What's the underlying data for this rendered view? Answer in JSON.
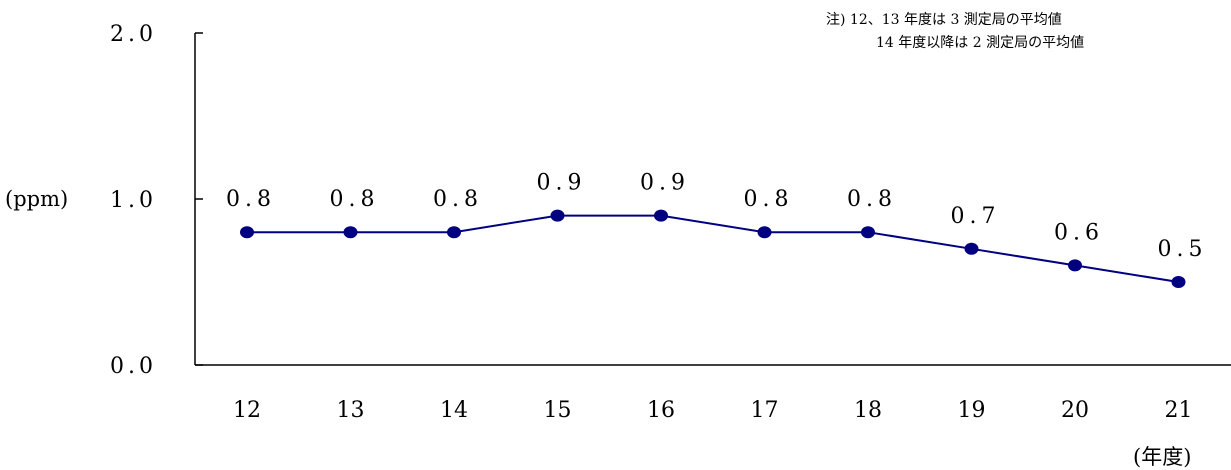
{
  "chart_data": {
    "type": "line",
    "categories": [
      "12",
      "13",
      "14",
      "15",
      "16",
      "17",
      "18",
      "19",
      "20",
      "21"
    ],
    "series": [
      {
        "values": [
          0.8,
          0.8,
          0.8,
          0.9,
          0.9,
          0.8,
          0.8,
          0.7,
          0.6,
          0.5
        ],
        "value_labels": [
          "0.8",
          "0.8",
          "0.8",
          "0.9",
          "0.9",
          "0.8",
          "0.8",
          "0.7",
          "0.6",
          "0.5"
        ],
        "color": "#000080"
      }
    ],
    "ylabel": "(ppm)",
    "xlabel": "(年度)",
    "ylim": [
      0.0,
      2.0
    ],
    "yticks": [
      {
        "value": 2.0,
        "label": "2.0"
      },
      {
        "value": 1.0,
        "label": "1.0"
      },
      {
        "value": 0.0,
        "label": "0.0"
      }
    ],
    "notes": [
      "注) 12、13 年度は 3 測定局の平均値",
      "14 年度以降は 2 測定局の平均値"
    ],
    "grid": false,
    "axis_color": "#000000"
  }
}
